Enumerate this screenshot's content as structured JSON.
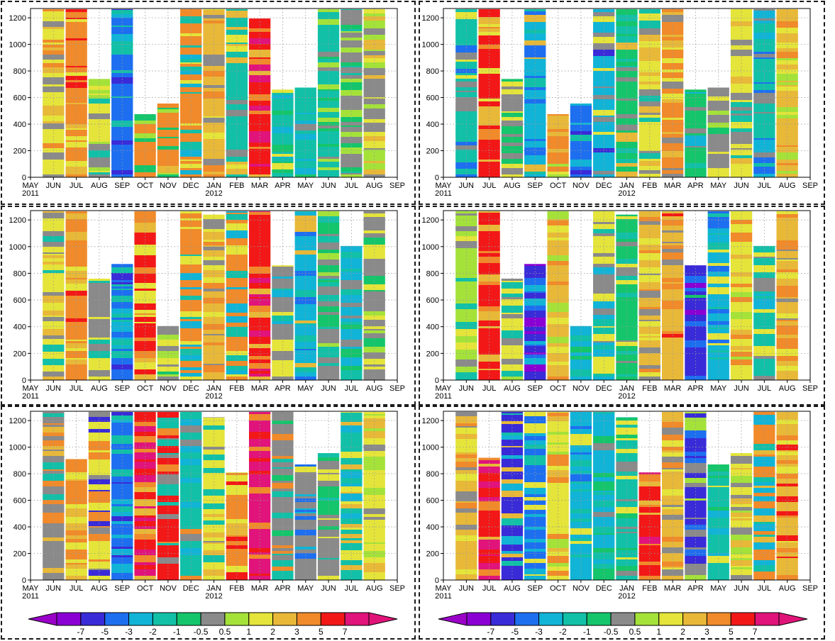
{
  "chart_data": {
    "type": "heatmap",
    "description_note": "",
    "x_month_labels": [
      "MAY",
      "JUN",
      "JUL",
      "AUG",
      "SEP",
      "OCT",
      "NOV",
      "DEC",
      "JAN",
      "FEB",
      "MAR",
      "APR",
      "MAY",
      "JUN",
      "JUL",
      "AUG",
      "SEP"
    ],
    "x_year_labels": [
      {
        "label": "2011",
        "month_index": 0
      },
      {
        "label": "2012",
        "month_index": 8
      }
    ],
    "y_ticks": [
      0,
      200,
      400,
      600,
      800,
      1000,
      1200
    ],
    "ylim": [
      0,
      1270
    ],
    "colorbar": {
      "labels": [
        "-7",
        "-5",
        "-3",
        "-2",
        "-1",
        "-0.5",
        "0.5",
        "1",
        "2",
        "3",
        "5",
        "7"
      ],
      "colors": [
        "#8a00d4",
        "#3a2bd8",
        "#1e6ff0",
        "#11b4d6",
        "#12c0a8",
        "#15c56b",
        "#8a8a8a",
        "#a4e23a",
        "#e4e43a",
        "#e8b838",
        "#f08a2a",
        "#f21818",
        "#e0147a"
      ],
      "low_end_color": "#9a00c8",
      "high_end_color": "#e01478"
    },
    "panels": [
      {
        "id": "top-left",
        "bars": [
          {
            "month": "JUN",
            "top": 1265,
            "dominant": 8,
            "mix": [
              9,
              6,
              10
            ]
          },
          {
            "month": "JUL",
            "top": 1265,
            "dominant": 10,
            "mix": [
              11,
              9,
              8
            ]
          },
          {
            "month": "AUG",
            "top": 740,
            "dominant": 8,
            "mix": [
              4,
              7,
              6
            ]
          },
          {
            "month": "SEP",
            "top": 1265,
            "dominant": 2,
            "mix": [
              1,
              3,
              4
            ]
          },
          {
            "month": "OCT",
            "top": 475,
            "dominant": 10,
            "mix": [
              9,
              7,
              5
            ]
          },
          {
            "month": "NOV",
            "top": 555,
            "dominant": 10,
            "mix": [
              9,
              7,
              5
            ]
          },
          {
            "month": "DEC",
            "top": 1265,
            "dominant": 10,
            "mix": [
              3,
              4,
              8
            ]
          },
          {
            "month": "JAN",
            "top": 1265,
            "dominant": 9,
            "mix": [
              10,
              8,
              6
            ]
          },
          {
            "month": "FEB",
            "top": 1265,
            "dominant": 4,
            "mix": [
              6,
              8,
              9
            ]
          },
          {
            "month": "MAR",
            "top": 1195,
            "dominant": 11,
            "mix": [
              10,
              9,
              12
            ]
          },
          {
            "month": "APR",
            "top": 660,
            "dominant": 4,
            "mix": [
              3,
              5,
              8
            ]
          },
          {
            "month": "MAY",
            "top": 675,
            "dominant": 4,
            "mix": [
              6,
              5,
              3
            ]
          },
          {
            "month": "JUN",
            "top": 1265,
            "dominant": 4,
            "mix": [
              6,
              5,
              7
            ]
          },
          {
            "month": "JUL",
            "top": 1265,
            "dominant": 6,
            "mix": [
              5,
              4,
              7
            ]
          },
          {
            "month": "AUG",
            "top": 1265,
            "dominant": 6,
            "mix": [
              7,
              8,
              9
            ]
          }
        ]
      },
      {
        "id": "top-right",
        "bars": [
          {
            "month": "JUN",
            "top": 1265,
            "dominant": 4,
            "mix": [
              2,
              8,
              6
            ]
          },
          {
            "month": "JUL",
            "top": 1265,
            "dominant": 11,
            "mix": [
              10,
              9,
              8
            ]
          },
          {
            "month": "AUG",
            "top": 740,
            "dominant": 6,
            "mix": [
              5,
              8,
              7
            ]
          },
          {
            "month": "SEP",
            "top": 1265,
            "dominant": 3,
            "mix": [
              2,
              4,
              9
            ]
          },
          {
            "month": "OCT",
            "top": 475,
            "dominant": 10,
            "mix": [
              9,
              8,
              7
            ]
          },
          {
            "month": "NOV",
            "top": 555,
            "dominant": 2,
            "mix": [
              1,
              3,
              4
            ]
          },
          {
            "month": "DEC",
            "top": 1265,
            "dominant": 3,
            "mix": [
              1,
              6,
              8
            ]
          },
          {
            "month": "JAN",
            "top": 1265,
            "dominant": 5,
            "mix": [
              4,
              6,
              9
            ]
          },
          {
            "month": "FEB",
            "top": 1265,
            "dominant": 8,
            "mix": [
              9,
              4,
              6
            ]
          },
          {
            "month": "MAR",
            "top": 1265,
            "dominant": 10,
            "mix": [
              6,
              9,
              8
            ]
          },
          {
            "month": "APR",
            "top": 660,
            "dominant": 5,
            "mix": [
              4,
              3,
              6
            ]
          },
          {
            "month": "MAY",
            "top": 675,
            "dominant": 6,
            "mix": [
              7,
              8,
              5
            ]
          },
          {
            "month": "JUN",
            "top": 1265,
            "dominant": 8,
            "mix": [
              6,
              9,
              4
            ]
          },
          {
            "month": "JUL",
            "top": 1265,
            "dominant": 4,
            "mix": [
              2,
              3,
              6
            ]
          },
          {
            "month": "AUG",
            "top": 1265,
            "dominant": 9,
            "mix": [
              10,
              8,
              7
            ]
          }
        ]
      },
      {
        "id": "middle-left",
        "bars": [
          {
            "month": "JUN",
            "top": 1265,
            "dominant": 8,
            "mix": [
              9,
              4,
              6
            ]
          },
          {
            "month": "JUL",
            "top": 1265,
            "dominant": 10,
            "mix": [
              9,
              8,
              11
            ]
          },
          {
            "month": "AUG",
            "top": 760,
            "dominant": 6,
            "mix": [
              8,
              4,
              7
            ]
          },
          {
            "month": "SEP",
            "top": 870,
            "dominant": 2,
            "mix": [
              1,
              3,
              4
            ]
          },
          {
            "month": "OCT",
            "top": 1265,
            "dominant": 11,
            "mix": [
              10,
              9,
              8
            ]
          },
          {
            "month": "NOV",
            "top": 405,
            "dominant": 6,
            "mix": [
              7,
              8,
              5
            ]
          },
          {
            "month": "DEC",
            "top": 1265,
            "dominant": 10,
            "mix": [
              3,
              4,
              8
            ]
          },
          {
            "month": "JAN",
            "top": 1240,
            "dominant": 9,
            "mix": [
              8,
              10,
              6
            ]
          },
          {
            "month": "FEB",
            "top": 1265,
            "dominant": 10,
            "mix": [
              8,
              4,
              3
            ]
          },
          {
            "month": "MAR",
            "top": 1265,
            "dominant": 11,
            "mix": [
              12,
              10,
              9
            ]
          },
          {
            "month": "APR",
            "top": 860,
            "dominant": 6,
            "mix": [
              4,
              3,
              8
            ]
          },
          {
            "month": "MAY",
            "top": 1265,
            "dominant": 3,
            "mix": [
              2,
              4,
              9
            ]
          },
          {
            "month": "JUN",
            "top": 1265,
            "dominant": 6,
            "mix": [
              4,
              7,
              5
            ]
          },
          {
            "month": "JUL",
            "top": 1005,
            "dominant": 3,
            "mix": [
              4,
              6,
              5
            ]
          },
          {
            "month": "AUG",
            "top": 1265,
            "dominant": 6,
            "mix": [
              5,
              7,
              8
            ]
          }
        ]
      },
      {
        "id": "middle-right",
        "bars": [
          {
            "month": "JUN",
            "top": 1265,
            "dominant": 7,
            "mix": [
              6,
              8,
              4
            ]
          },
          {
            "month": "JUL",
            "top": 1265,
            "dominant": 11,
            "mix": [
              10,
              9,
              11
            ]
          },
          {
            "month": "AUG",
            "top": 760,
            "dominant": 8,
            "mix": [
              4,
              6,
              7
            ]
          },
          {
            "month": "SEP",
            "top": 870,
            "dominant": 1,
            "mix": [
              2,
              3,
              0
            ]
          },
          {
            "month": "OCT",
            "top": 1265,
            "dominant": 9,
            "mix": [
              10,
              8,
              7
            ]
          },
          {
            "month": "NOV",
            "top": 405,
            "dominant": 3,
            "mix": [
              2,
              4,
              5
            ]
          },
          {
            "month": "DEC",
            "top": 1265,
            "dominant": 8,
            "mix": [
              6,
              3,
              4
            ]
          },
          {
            "month": "JAN",
            "top": 1240,
            "dominant": 5,
            "mix": [
              4,
              8,
              6
            ]
          },
          {
            "month": "FEB",
            "top": 1265,
            "dominant": 9,
            "mix": [
              10,
              8,
              6
            ]
          },
          {
            "month": "MAR",
            "top": 1265,
            "dominant": 9,
            "mix": [
              6,
              11,
              10
            ]
          },
          {
            "month": "APR",
            "top": 860,
            "dominant": 1,
            "mix": [
              2,
              5,
              0
            ]
          },
          {
            "month": "MAY",
            "top": 1265,
            "dominant": 3,
            "mix": [
              4,
              2,
              8
            ]
          },
          {
            "month": "JUN",
            "top": 1265,
            "dominant": 8,
            "mix": [
              9,
              7,
              10
            ]
          },
          {
            "month": "JUL",
            "top": 1005,
            "dominant": 4,
            "mix": [
              6,
              3,
              8
            ]
          },
          {
            "month": "AUG",
            "top": 1265,
            "dominant": 9,
            "mix": [
              10,
              8,
              6
            ]
          }
        ]
      },
      {
        "id": "bottom-left",
        "bars": [
          {
            "month": "JUN",
            "top": 1265,
            "dominant": 6,
            "mix": [
              9,
              10,
              4
            ]
          },
          {
            "month": "JUL",
            "top": 910,
            "dominant": 10,
            "mix": [
              9,
              8,
              7
            ]
          },
          {
            "month": "AUG",
            "top": 1265,
            "dominant": 8,
            "mix": [
              6,
              10,
              1
            ]
          },
          {
            "month": "SEP",
            "top": 1265,
            "dominant": 2,
            "mix": [
              3,
              4,
              1
            ]
          },
          {
            "month": "OCT",
            "top": 1265,
            "dominant": 11,
            "mix": [
              10,
              12,
              9
            ]
          },
          {
            "month": "NOV",
            "top": 1265,
            "dominant": 11,
            "mix": [
              10,
              4,
              6
            ]
          },
          {
            "month": "DEC",
            "top": 1265,
            "dominant": 4,
            "mix": [
              10,
              3,
              6
            ]
          },
          {
            "month": "JAN",
            "top": 1225,
            "dominant": 8,
            "mix": [
              6,
              9,
              4
            ]
          },
          {
            "month": "FEB",
            "top": 810,
            "dominant": 10,
            "mix": [
              9,
              11,
              8
            ]
          },
          {
            "month": "MAR",
            "top": 1265,
            "dominant": 12,
            "mix": [
              11,
              10,
              12
            ]
          },
          {
            "month": "APR",
            "top": 1265,
            "dominant": 6,
            "mix": [
              10,
              5,
              4
            ]
          },
          {
            "month": "MAY",
            "top": 870,
            "dominant": 6,
            "mix": [
              3,
              2,
              8
            ]
          },
          {
            "month": "JUN",
            "top": 955,
            "dominant": 6,
            "mix": [
              8,
              4,
              5
            ]
          },
          {
            "month": "JUL",
            "top": 1265,
            "dominant": 4,
            "mix": [
              3,
              9,
              8
            ]
          },
          {
            "month": "AUG",
            "top": 1265,
            "dominant": 8,
            "mix": [
              6,
              7,
              9
            ]
          }
        ]
      },
      {
        "id": "bottom-right",
        "bars": [
          {
            "month": "JUN",
            "top": 1265,
            "dominant": 9,
            "mix": [
              10,
              6,
              8
            ]
          },
          {
            "month": "JUL",
            "top": 920,
            "dominant": 11,
            "mix": [
              10,
              9,
              12
            ]
          },
          {
            "month": "AUG",
            "top": 1265,
            "dominant": 1,
            "mix": [
              3,
              4,
              9
            ]
          },
          {
            "month": "SEP",
            "top": 1265,
            "dominant": 2,
            "mix": [
              3,
              4,
              8
            ]
          },
          {
            "month": "OCT",
            "top": 1265,
            "dominant": 8,
            "mix": [
              9,
              7,
              10
            ]
          },
          {
            "month": "NOV",
            "top": 1265,
            "dominant": 3,
            "mix": [
              2,
              4,
              8
            ]
          },
          {
            "month": "DEC",
            "top": 1265,
            "dominant": 3,
            "mix": [
              4,
              6,
              5
            ]
          },
          {
            "month": "JAN",
            "top": 1225,
            "dominant": 4,
            "mix": [
              5,
              8,
              6
            ]
          },
          {
            "month": "FEB",
            "top": 810,
            "dominant": 11,
            "mix": [
              10,
              9,
              12
            ]
          },
          {
            "month": "MAR",
            "top": 1265,
            "dominant": 9,
            "mix": [
              8,
              6,
              10
            ]
          },
          {
            "month": "APR",
            "top": 1265,
            "dominant": 1,
            "mix": [
              2,
              7,
              6
            ]
          },
          {
            "month": "MAY",
            "top": 870,
            "dominant": 4,
            "mix": [
              3,
              5,
              8
            ]
          },
          {
            "month": "JUN",
            "top": 955,
            "dominant": 8,
            "mix": [
              7,
              9,
              6
            ]
          },
          {
            "month": "JUL",
            "top": 1265,
            "dominant": 10,
            "mix": [
              3,
              9,
              4
            ]
          },
          {
            "month": "AUG",
            "top": 1265,
            "dominant": 9,
            "mix": [
              10,
              11,
              8
            ]
          }
        ]
      }
    ]
  }
}
